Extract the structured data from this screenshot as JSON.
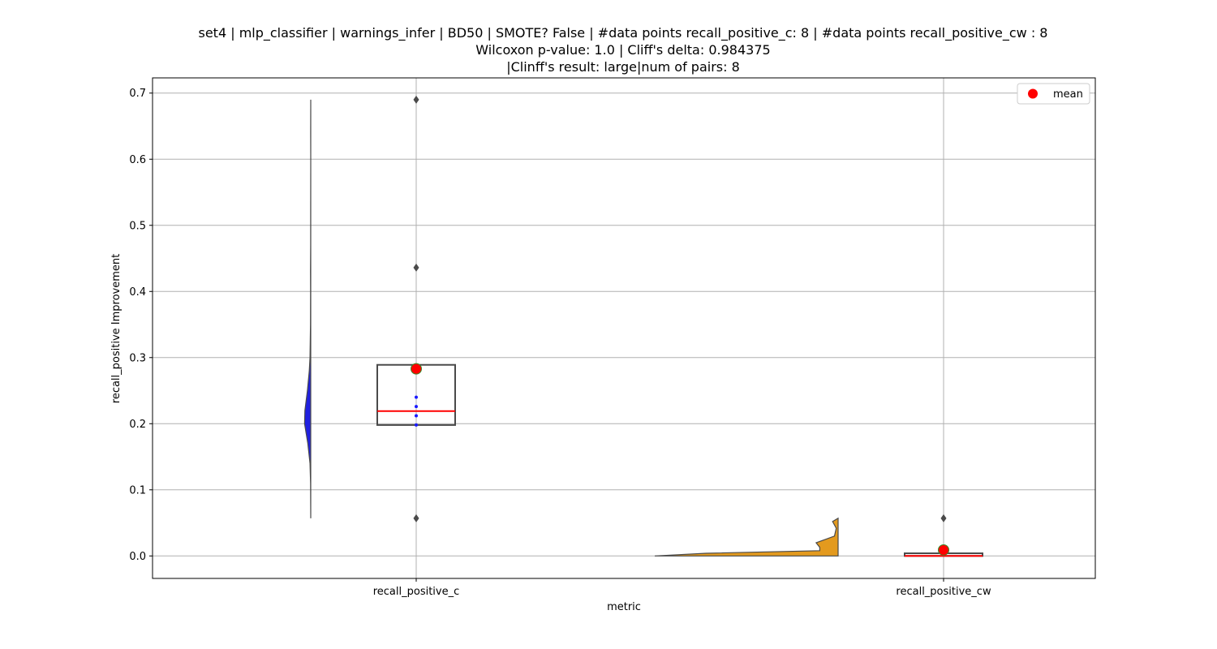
{
  "chart_data": {
    "type": "violin+box",
    "title_lines": [
      "set4 | mlp_classifier | warnings_infer | BD50 | SMOTE? False | #data points recall_positive_c: 8 | #data points recall_positive_cw : 8",
      "Wilcoxon p-value: 1.0 | Cliff's delta: 0.984375",
      "|Clinff's result: large|num of pairs: 8"
    ],
    "xlabel": "metric",
    "ylabel": "recall_positive Improvement",
    "ylim": [
      -0.034,
      0.723
    ],
    "yticks": [
      0.0,
      0.1,
      0.2,
      0.3,
      0.4,
      0.5,
      0.6,
      0.7
    ],
    "ytick_labels": [
      "0.0",
      "0.1",
      "0.2",
      "0.3",
      "0.4",
      "0.5",
      "0.6",
      "0.7"
    ],
    "categories": [
      "recall_positive_c",
      "recall_positive_cw"
    ],
    "grid": true,
    "legend": {
      "position": "upper right",
      "entries": [
        {
          "label": "mean",
          "color": "#ff0000",
          "marker": "circle"
        }
      ]
    },
    "colors": {
      "violin_c": "#2020e0",
      "violin_cw": "#e39a1e",
      "mean": "#ff0000",
      "mean_edge": "#3a8a2a",
      "median": "#ff0000",
      "box_edge": "#4a4a4a",
      "outlier": "#4a4a4a",
      "point": "#1a1aff",
      "grid": "#b0b0b0"
    },
    "violins": [
      {
        "category": "recall_positive_c",
        "side": "left",
        "color": "#2020e0",
        "profile": [
          [
            0.057,
            0.0
          ],
          [
            0.08,
            0.005
          ],
          [
            0.11,
            0.01
          ],
          [
            0.14,
            0.05
          ],
          [
            0.17,
            0.2
          ],
          [
            0.2,
            0.42
          ],
          [
            0.22,
            0.4
          ],
          [
            0.25,
            0.23
          ],
          [
            0.28,
            0.1
          ],
          [
            0.3,
            0.05
          ],
          [
            0.35,
            0.015
          ],
          [
            0.4,
            0.01
          ],
          [
            0.43,
            0.015
          ],
          [
            0.47,
            0.008
          ],
          [
            0.52,
            0.005
          ],
          [
            0.6,
            0.0
          ],
          [
            0.64,
            0.008
          ],
          [
            0.69,
            0.0
          ]
        ]
      },
      {
        "category": "recall_positive_cw",
        "side": "left",
        "color": "#e39a1e",
        "profile": [
          [
            0.0,
            1.0
          ],
          [
            0.004,
            0.72
          ],
          [
            0.008,
            0.1
          ],
          [
            0.013,
            0.1
          ],
          [
            0.02,
            0.12
          ],
          [
            0.03,
            0.02
          ],
          [
            0.042,
            0.01
          ],
          [
            0.052,
            0.03
          ],
          [
            0.057,
            0.0
          ]
        ]
      }
    ],
    "boxes": [
      {
        "category": "recall_positive_c",
        "q1": 0.198,
        "median": 0.219,
        "q3": 0.289,
        "mean": 0.283,
        "outliers": [
          0.057,
          0.436,
          0.69
        ],
        "points": [
          0.198,
          0.212,
          0.226,
          0.24
        ]
      },
      {
        "category": "recall_positive_cw",
        "q1": 0.0,
        "median": 0.0,
        "q3": 0.004,
        "mean": 0.009,
        "outliers": [
          0.057
        ],
        "points": []
      }
    ]
  }
}
